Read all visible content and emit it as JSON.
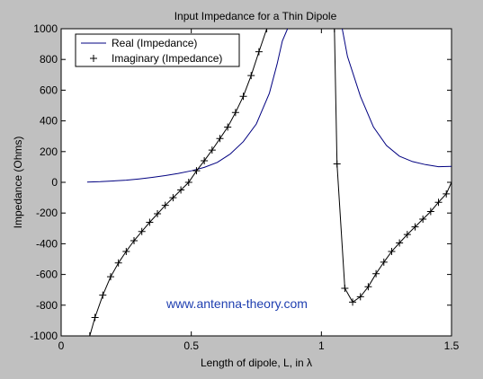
{
  "chart_data": {
    "type": "line",
    "title": "Input Impedance for a Thin Dipole",
    "xlabel": "Length of dipole, L, in λ",
    "ylabel": "Impedance (Ohms)",
    "xlim": [
      0,
      1.5
    ],
    "ylim": [
      -1000,
      1000
    ],
    "x_ticks": [
      0,
      0.5,
      1,
      1.5
    ],
    "x_tick_labels": [
      "0",
      "0.5",
      "1",
      "1.5"
    ],
    "y_ticks": [
      -1000,
      -800,
      -600,
      -400,
      -200,
      0,
      200,
      400,
      600,
      800,
      1000
    ],
    "y_tick_labels": [
      "-1000",
      "-800",
      "-600",
      "-400",
      "-200",
      "0",
      "200",
      "400",
      "600",
      "800",
      "1000"
    ],
    "grid": false,
    "legend_position": "top-left",
    "annotation": "www.antenna-theory.com",
    "colors": {
      "figure_background": "#c0c0c0",
      "axes_background": "#ffffff",
      "real_line": "#000080",
      "imag_line": "#000000",
      "annotation": "#1f3fb0"
    },
    "series": [
      {
        "name": "Real (Impedance)",
        "style": "line",
        "segments": [
          [
            [
              0.1,
              2
            ],
            [
              0.15,
              4
            ],
            [
              0.2,
              9
            ],
            [
              0.25,
              14
            ],
            [
              0.3,
              22
            ],
            [
              0.35,
              32
            ],
            [
              0.4,
              44
            ],
            [
              0.45,
              58
            ],
            [
              0.5,
              75
            ],
            [
              0.55,
              97
            ],
            [
              0.6,
              130
            ],
            [
              0.65,
              185
            ],
            [
              0.7,
              265
            ],
            [
              0.75,
              380
            ],
            [
              0.8,
              580
            ],
            [
              0.83,
              770
            ],
            [
              0.85,
              920
            ],
            [
              0.87,
              1000
            ]
          ],
          [
            [
              1.08,
              1000
            ],
            [
              1.1,
              820
            ],
            [
              1.15,
              560
            ],
            [
              1.2,
              360
            ],
            [
              1.25,
              240
            ],
            [
              1.3,
              170
            ],
            [
              1.35,
              135
            ],
            [
              1.4,
              115
            ],
            [
              1.45,
              102
            ],
            [
              1.5,
              104
            ]
          ]
        ]
      },
      {
        "name": "Imaginary (Impedance)",
        "style": "line-plus",
        "segments": [
          [
            [
              0.11,
              -1000
            ],
            [
              0.13,
              -880
            ],
            [
              0.16,
              -735
            ],
            [
              0.19,
              -615
            ],
            [
              0.22,
              -525
            ],
            [
              0.25,
              -450
            ],
            [
              0.28,
              -380
            ],
            [
              0.31,
              -320
            ],
            [
              0.34,
              -260
            ],
            [
              0.37,
              -205
            ],
            [
              0.4,
              -150
            ],
            [
              0.43,
              -100
            ],
            [
              0.46,
              -50
            ],
            [
              0.49,
              0
            ],
            [
              0.52,
              75
            ],
            [
              0.55,
              140
            ],
            [
              0.58,
              210
            ],
            [
              0.61,
              285
            ],
            [
              0.64,
              360
            ],
            [
              0.67,
              455
            ],
            [
              0.7,
              560
            ],
            [
              0.73,
              695
            ],
            [
              0.76,
              850
            ],
            [
              0.79,
              1000
            ]
          ],
          [
            [
              1.05,
              1000
            ],
            [
              1.06,
              120
            ],
            [
              1.09,
              -690
            ],
            [
              1.12,
              -780
            ],
            [
              1.15,
              -745
            ],
            [
              1.18,
              -680
            ],
            [
              1.21,
              -595
            ],
            [
              1.24,
              -520
            ],
            [
              1.27,
              -450
            ],
            [
              1.3,
              -395
            ],
            [
              1.33,
              -340
            ],
            [
              1.36,
              -290
            ],
            [
              1.39,
              -240
            ],
            [
              1.42,
              -190
            ],
            [
              1.45,
              -130
            ],
            [
              1.48,
              -75
            ],
            [
              1.5,
              0
            ]
          ]
        ]
      }
    ]
  }
}
